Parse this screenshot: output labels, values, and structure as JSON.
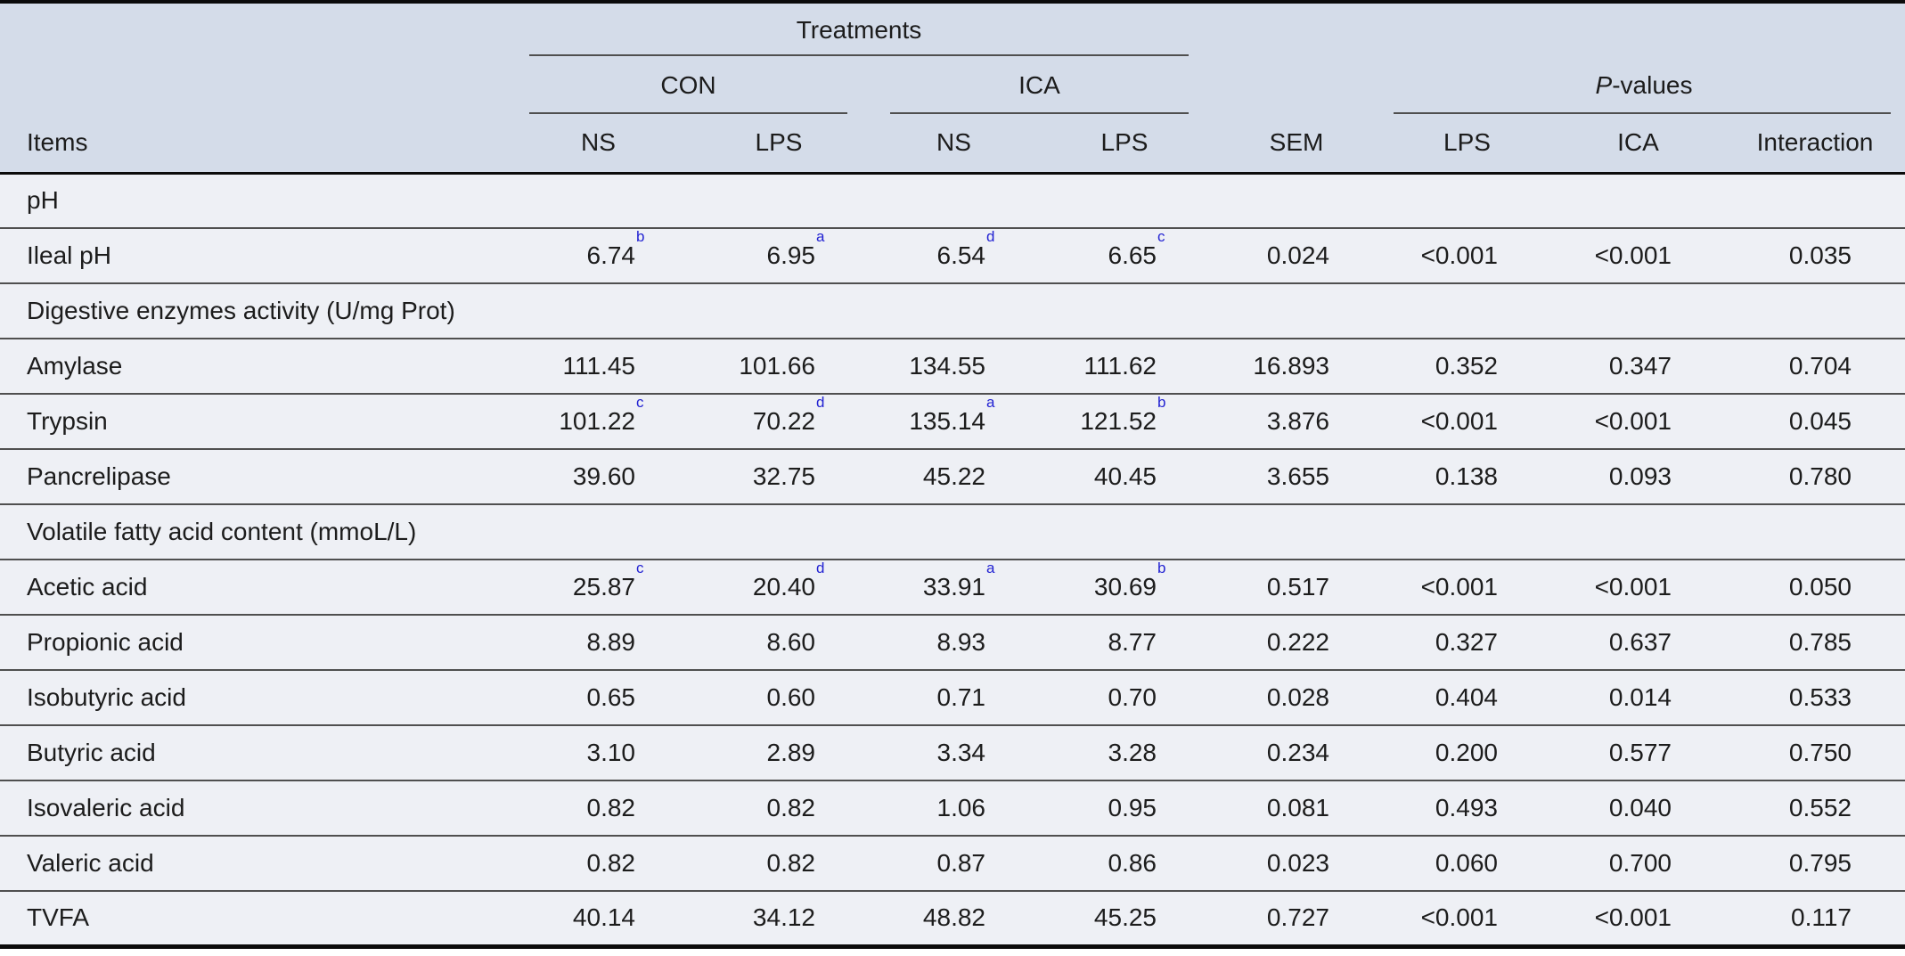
{
  "colors": {
    "header_bg": "#d4dce9",
    "body_bg": "#eef0f5",
    "superscript_blue": "#2222d2",
    "thin_rule": "#4f4f4f",
    "heavy_rule": "#0b0b0b",
    "text": "#1c1c1c"
  },
  "table": {
    "header": {
      "treatments": "Treatments",
      "con": "CON",
      "ica": "ICA",
      "pvalues_italic": "P",
      "pvalues_rest": "-values",
      "items": "Items",
      "ns1": "NS",
      "lps1": "LPS",
      "ns2": "NS",
      "lps2": "LPS",
      "sem": "SEM",
      "p_lps": "LPS",
      "p_ica": "ICA",
      "p_interaction": "Interaction"
    },
    "rows": [
      {
        "type": "section",
        "label": "pH"
      },
      {
        "type": "data",
        "label": "Ileal pH",
        "cells": [
          {
            "v": "6.74",
            "sup": "b"
          },
          {
            "v": "6.95",
            "sup": "a"
          },
          {
            "v": "6.54",
            "sup": "d"
          },
          {
            "v": "6.65",
            "sup": "c"
          },
          {
            "v": "0.024"
          },
          {
            "v": "<0.001"
          },
          {
            "v": "<0.001"
          },
          {
            "v": "0.035"
          }
        ]
      },
      {
        "type": "section",
        "label": "Digestive enzymes activity (U/mg Prot)"
      },
      {
        "type": "data",
        "label": "Amylase",
        "cells": [
          {
            "v": "111.45"
          },
          {
            "v": "101.66"
          },
          {
            "v": "134.55"
          },
          {
            "v": "111.62"
          },
          {
            "v": "16.893"
          },
          {
            "v": "0.352"
          },
          {
            "v": "0.347"
          },
          {
            "v": "0.704"
          }
        ]
      },
      {
        "type": "data",
        "label": "Trypsin",
        "cells": [
          {
            "v": "101.22",
            "sup": "c"
          },
          {
            "v": "70.22",
            "sup": "d"
          },
          {
            "v": "135.14",
            "sup": "a"
          },
          {
            "v": "121.52",
            "sup": "b"
          },
          {
            "v": "3.876"
          },
          {
            "v": "<0.001"
          },
          {
            "v": "<0.001"
          },
          {
            "v": "0.045"
          }
        ]
      },
      {
        "type": "data",
        "label": "Pancrelipase",
        "cells": [
          {
            "v": "39.60"
          },
          {
            "v": "32.75"
          },
          {
            "v": "45.22"
          },
          {
            "v": "40.45"
          },
          {
            "v": "3.655"
          },
          {
            "v": "0.138"
          },
          {
            "v": "0.093"
          },
          {
            "v": "0.780"
          }
        ]
      },
      {
        "type": "section",
        "label": "Volatile fatty acid content (mmoL/L)"
      },
      {
        "type": "data",
        "label": "Acetic acid",
        "cells": [
          {
            "v": "25.87",
            "sup": "c"
          },
          {
            "v": "20.40",
            "sup": "d"
          },
          {
            "v": "33.91",
            "sup": "a"
          },
          {
            "v": "30.69",
            "sup": "b"
          },
          {
            "v": "0.517"
          },
          {
            "v": "<0.001"
          },
          {
            "v": "<0.001"
          },
          {
            "v": "0.050"
          }
        ]
      },
      {
        "type": "data",
        "label": "Propionic acid",
        "cells": [
          {
            "v": "8.89"
          },
          {
            "v": "8.60"
          },
          {
            "v": "8.93"
          },
          {
            "v": "8.77"
          },
          {
            "v": "0.222"
          },
          {
            "v": "0.327"
          },
          {
            "v": "0.637"
          },
          {
            "v": "0.785"
          }
        ]
      },
      {
        "type": "data",
        "label": "Isobutyric acid",
        "cells": [
          {
            "v": "0.65"
          },
          {
            "v": "0.60"
          },
          {
            "v": "0.71"
          },
          {
            "v": "0.70"
          },
          {
            "v": "0.028"
          },
          {
            "v": "0.404"
          },
          {
            "v": "0.014"
          },
          {
            "v": "0.533"
          }
        ]
      },
      {
        "type": "data",
        "label": "Butyric acid",
        "cells": [
          {
            "v": "3.10"
          },
          {
            "v": "2.89"
          },
          {
            "v": "3.34"
          },
          {
            "v": "3.28"
          },
          {
            "v": "0.234"
          },
          {
            "v": "0.200"
          },
          {
            "v": "0.577"
          },
          {
            "v": "0.750"
          }
        ]
      },
      {
        "type": "data",
        "label": "Isovaleric acid",
        "cells": [
          {
            "v": "0.82"
          },
          {
            "v": "0.82"
          },
          {
            "v": "1.06"
          },
          {
            "v": "0.95"
          },
          {
            "v": "0.081"
          },
          {
            "v": "0.493"
          },
          {
            "v": "0.040"
          },
          {
            "v": "0.552"
          }
        ]
      },
      {
        "type": "data",
        "label": "Valeric acid",
        "cells": [
          {
            "v": "0.82"
          },
          {
            "v": "0.82"
          },
          {
            "v": "0.87"
          },
          {
            "v": "0.86"
          },
          {
            "v": "0.023"
          },
          {
            "v": "0.060"
          },
          {
            "v": "0.700"
          },
          {
            "v": "0.795"
          }
        ]
      },
      {
        "type": "data",
        "label": "TVFA",
        "cells": [
          {
            "v": "40.14"
          },
          {
            "v": "34.12"
          },
          {
            "v": "48.82"
          },
          {
            "v": "45.25"
          },
          {
            "v": "0.727"
          },
          {
            "v": "<0.001"
          },
          {
            "v": "<0.001"
          },
          {
            "v": "0.117"
          }
        ]
      }
    ]
  }
}
